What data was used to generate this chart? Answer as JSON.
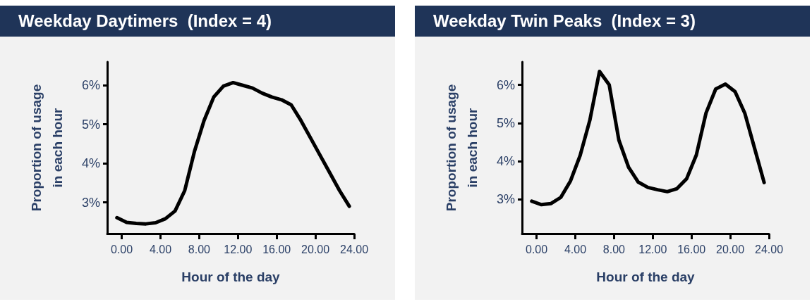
{
  "chart_data": [
    {
      "type": "line",
      "title": "Weekday Daytimers  (Index = 4)",
      "xlabel": "Hour of the day",
      "ylabel": "Proportion of usage\nin each hour",
      "x": [
        -0.5,
        0.5,
        1.5,
        2.5,
        3.5,
        4.5,
        5.5,
        6.5,
        7.5,
        8.5,
        9.5,
        10.5,
        11.5,
        12.5,
        13.5,
        14.5,
        15.5,
        16.5,
        17.5,
        18.5,
        19.5,
        20.5,
        21.5,
        22.5,
        23.5
      ],
      "series": [
        {
          "color": "#000000",
          "values": [
            2.61,
            2.49,
            2.46,
            2.45,
            2.48,
            2.58,
            2.78,
            3.3,
            4.3,
            5.1,
            5.7,
            5.98,
            6.07,
            6.0,
            5.93,
            5.8,
            5.7,
            5.63,
            5.5,
            5.1,
            4.65,
            4.2,
            3.75,
            3.3,
            2.9
          ]
        }
      ],
      "xlim": [
        -1.5,
        24
      ],
      "xticks": [
        {
          "value": 0,
          "label": "0.00"
        },
        {
          "value": 4,
          "label": "4.00"
        },
        {
          "value": 8,
          "label": "8.00"
        },
        {
          "value": 12,
          "label": "12.00"
        },
        {
          "value": 16,
          "label": "16.00"
        },
        {
          "value": 20,
          "label": "20.00"
        },
        {
          "value": 24,
          "label": "24.00"
        }
      ],
      "ylim": [
        2.2,
        6.6
      ],
      "yticks": [
        {
          "value": 3,
          "label": "3%"
        },
        {
          "value": 4,
          "label": "4%"
        },
        {
          "value": 5,
          "label": "5%"
        },
        {
          "value": 6,
          "label": "6%"
        }
      ],
      "grid": false,
      "marker": "none",
      "line_style": "solid"
    },
    {
      "type": "line",
      "title": "Weekday Twin Peaks  (Index = 3)",
      "xlabel": "Hour of the day",
      "ylabel": "Proportion of usage\nin each hour",
      "x": [
        -0.5,
        0.5,
        1.5,
        2.5,
        3.5,
        4.5,
        5.5,
        6.5,
        7.5,
        8.5,
        9.5,
        10.5,
        11.5,
        12.5,
        13.5,
        14.5,
        15.5,
        16.5,
        17.5,
        18.5,
        19.5,
        20.5,
        21.5,
        22.5,
        23.5
      ],
      "series": [
        {
          "color": "#000000",
          "values": [
            2.95,
            2.86,
            2.89,
            3.05,
            3.48,
            4.15,
            5.07,
            6.35,
            6.0,
            4.55,
            3.84,
            3.45,
            3.31,
            3.25,
            3.2,
            3.28,
            3.54,
            4.16,
            5.26,
            5.89,
            6.02,
            5.82,
            5.26,
            4.35,
            3.44
          ]
        }
      ],
      "xlim": [
        -1.5,
        24
      ],
      "xticks": [
        {
          "value": 0,
          "label": "0.00"
        },
        {
          "value": 4,
          "label": "4.00"
        },
        {
          "value": 8,
          "label": "8.00"
        },
        {
          "value": 12,
          "label": "12.00"
        },
        {
          "value": 16,
          "label": "16.00"
        },
        {
          "value": 20,
          "label": "20.00"
        },
        {
          "value": 24,
          "label": "24.00"
        }
      ],
      "ylim": [
        2.1,
        6.6
      ],
      "yticks": [
        {
          "value": 3,
          "label": "3%"
        },
        {
          "value": 4,
          "label": "4%"
        },
        {
          "value": 5,
          "label": "5%"
        },
        {
          "value": 6,
          "label": "6%"
        }
      ],
      "grid": false,
      "marker": "none",
      "line_style": "solid"
    }
  ]
}
